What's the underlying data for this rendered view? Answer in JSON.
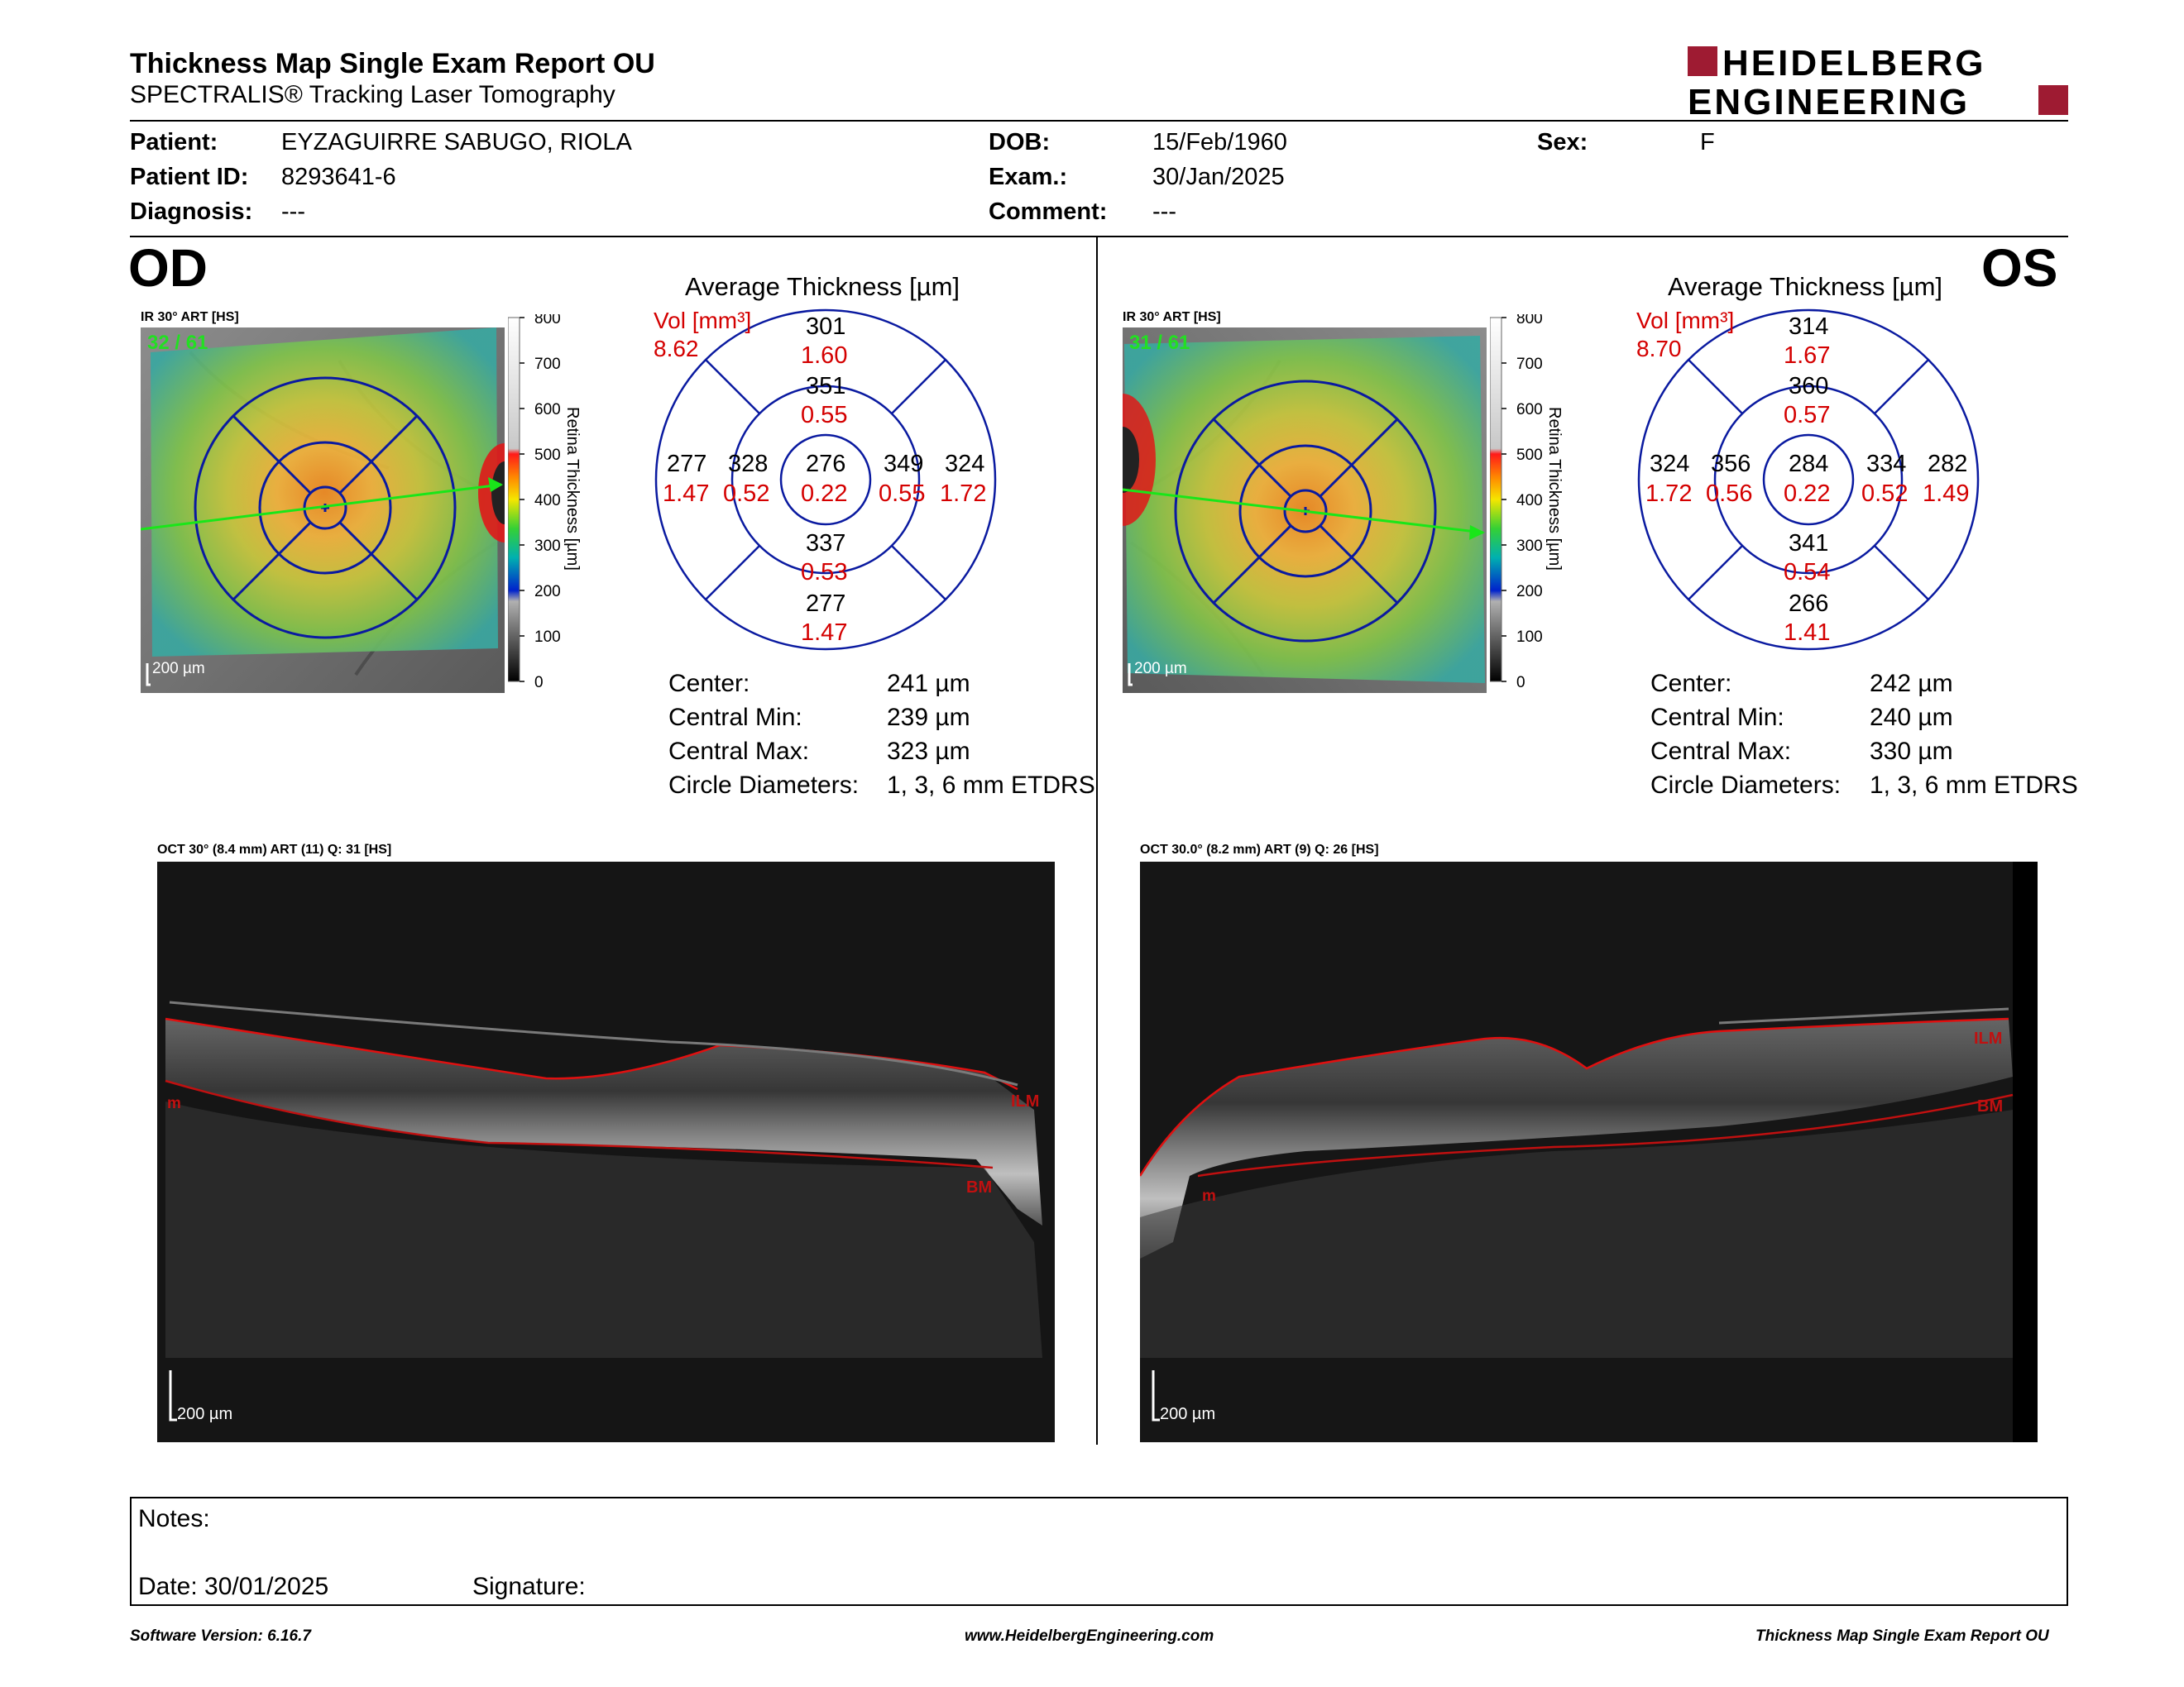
{
  "header": {
    "title": "Thickness Map Single Exam Report OU",
    "subtitle": "SPECTRALIS® Tracking Laser Tomography",
    "logo_line1": "HEIDELBERG",
    "logo_line2": "ENGINEERING",
    "logo_color": "#9e1b32"
  },
  "patient": {
    "patient_label": "Patient:",
    "patient_value": "EYZAGUIRRE SABUGO, RIOLA",
    "patient_id_label": "Patient ID:",
    "patient_id_value": "8293641-6",
    "diagnosis_label": "Diagnosis:",
    "diagnosis_value": "---",
    "dob_label": "DOB:",
    "dob_value": "15/Feb/1960",
    "exam_label": "Exam.:",
    "exam_value": "30/Jan/2025",
    "comment_label": "Comment:",
    "comment_value": "---",
    "sex_label": "Sex:",
    "sex_value": "F"
  },
  "scale": {
    "ticks": [
      "800",
      "700",
      "600",
      "500",
      "400",
      "300",
      "200",
      "100",
      "0"
    ],
    "label": "Retina Thickness [µm]"
  },
  "od": {
    "eye": "OD",
    "ir_caption": "IR 30° ART [HS]",
    "frame_counter": "32 / 61",
    "map_scale": "200 µm",
    "grid_title": "Average Thickness [µm]",
    "vol_label": "Vol [mm³]",
    "vol_total": "8.62",
    "sectors": {
      "outer_superior": {
        "t": "301",
        "v": "1.60"
      },
      "inner_superior": {
        "t": "351",
        "v": "0.55"
      },
      "outer_temporal": {
        "t": "277",
        "v": "1.47"
      },
      "inner_temporal": {
        "t": "328",
        "v": "0.52"
      },
      "center": {
        "t": "276",
        "v": "0.22"
      },
      "inner_nasal": {
        "t": "349",
        "v": "0.55"
      },
      "outer_nasal": {
        "t": "324",
        "v": "1.72"
      },
      "inner_inferior": {
        "t": "337",
        "v": "0.53"
      },
      "outer_inferior": {
        "t": "277",
        "v": "1.47"
      }
    },
    "stats": [
      {
        "label": "Center:",
        "value": "241 µm"
      },
      {
        "label": "Central Min:",
        "value": "239 µm"
      },
      {
        "label": "Central Max:",
        "value": "323 µm"
      },
      {
        "label": "Circle Diameters:",
        "value": "1, 3, 6 mm ETDRS"
      }
    ],
    "oct_caption": "OCT 30° (8.4 mm) ART (11) Q: 31 [HS]",
    "oct_scale": "200 µm",
    "oct_labels": {
      "ilm": "ILM",
      "bm": "BM",
      "m": "m"
    }
  },
  "os": {
    "eye": "OS",
    "ir_caption": "IR 30° ART [HS]",
    "frame_counter": "31 / 61",
    "map_scale": "200 µm",
    "grid_title": "Average Thickness [µm]",
    "vol_label": "Vol [mm³]",
    "vol_total": "8.70",
    "sectors": {
      "outer_superior": {
        "t": "314",
        "v": "1.67"
      },
      "inner_superior": {
        "t": "360",
        "v": "0.57"
      },
      "outer_nasal": {
        "t": "324",
        "v": "1.72"
      },
      "inner_nasal": {
        "t": "356",
        "v": "0.56"
      },
      "center": {
        "t": "284",
        "v": "0.22"
      },
      "inner_temporal": {
        "t": "334",
        "v": "0.52"
      },
      "outer_temporal": {
        "t": "282",
        "v": "1.49"
      },
      "inner_inferior": {
        "t": "341",
        "v": "0.54"
      },
      "outer_inferior": {
        "t": "266",
        "v": "1.41"
      }
    },
    "stats": [
      {
        "label": "Center:",
        "value": "242 µm"
      },
      {
        "label": "Central Min:",
        "value": "240 µm"
      },
      {
        "label": "Central Max:",
        "value": "330 µm"
      },
      {
        "label": "Circle Diameters:",
        "value": "1, 3, 6 mm ETDRS"
      }
    ],
    "oct_caption": "OCT 30.0° (8.2 mm) ART (9) Q: 26 [HS]",
    "oct_scale": "200 µm",
    "oct_labels": {
      "ilm": "ILM",
      "bm": "BM",
      "m": "m"
    }
  },
  "notes": {
    "notes_label": "Notes:",
    "date_label": "Date: 30/01/2025",
    "signature_label": "Signature:"
  },
  "footer": {
    "software": "Software Version: 6.16.7",
    "website": "www.HeidelbergEngineering.com",
    "report_name": "Thickness Map Single Exam Report OU"
  }
}
